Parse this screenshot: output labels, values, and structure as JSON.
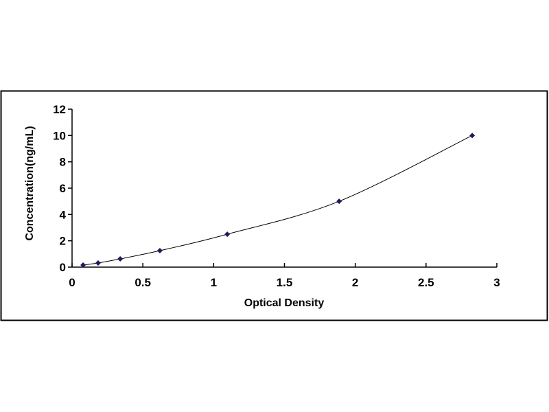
{
  "chart_data": {
    "type": "scatter",
    "title": "",
    "xlabel": "Optical Density",
    "ylabel": "Concentration(ng/mL)",
    "xlim": [
      0,
      3
    ],
    "ylim": [
      0,
      12
    ],
    "x_ticks": [
      "0",
      "0.5",
      "1",
      "1.5",
      "2",
      "2.5",
      "3"
    ],
    "y_ticks": [
      "0",
      "2",
      "4",
      "6",
      "8",
      "10",
      "12"
    ],
    "grid": false,
    "legend": "none",
    "trendline": "smooth curve",
    "marker": "diamond",
    "colors": {
      "marker": "#1a1a5e",
      "line": "#000000",
      "frame": "#000000"
    },
    "series": [
      {
        "x": [
          0.078,
          0.184,
          0.34,
          0.62,
          1.096,
          1.886,
          2.826
        ],
        "y": [
          0.156,
          0.312,
          0.625,
          1.25,
          2.5,
          5,
          10
        ]
      }
    ]
  }
}
